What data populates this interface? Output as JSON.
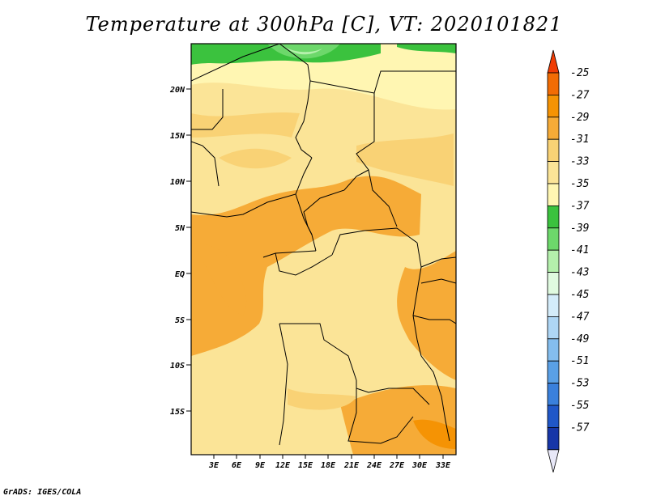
{
  "title": "Temperature at 300hPa [C], VT: 2020101821",
  "credit": "GrADS: IGES/COLA",
  "map": {
    "lon_ticks": [
      "3E",
      "6E",
      "9E",
      "12E",
      "15E",
      "18E",
      "21E",
      "24E",
      "27E",
      "30E",
      "33E"
    ],
    "lat_ticks": [
      "20N",
      "15N",
      "10N",
      "5N",
      "EQ",
      "5S",
      "10S",
      "15S"
    ]
  },
  "colorbar": {
    "levels": [
      {
        "label": "-25",
        "color": "#f26c04"
      },
      {
        "label": "-27",
        "color": "#f59304"
      },
      {
        "label": "-29",
        "color": "#f6ab37"
      },
      {
        "label": "-31",
        "color": "#f9d275"
      },
      {
        "label": "-33",
        "color": "#fbe497"
      },
      {
        "label": "-35",
        "color": "#fff6b2"
      },
      {
        "label": "-37",
        "color": "#3bc23e"
      },
      {
        "label": "-39",
        "color": "#6dd86b"
      },
      {
        "label": "-41",
        "color": "#b4f0ac"
      },
      {
        "label": "-43",
        "color": "#e0fae0"
      },
      {
        "label": "-45",
        "color": "#d4ecfa"
      },
      {
        "label": "-47",
        "color": "#aed6f5"
      },
      {
        "label": "-49",
        "color": "#84bdee"
      },
      {
        "label": "-51",
        "color": "#5aa0e6"
      },
      {
        "label": "-53",
        "color": "#3a80dc"
      },
      {
        "label": "-55",
        "color": "#2057c8"
      },
      {
        "label": "-57",
        "color": "#1736a8"
      }
    ],
    "top_arrow_color": "#f03c04",
    "bottom_arrow_color": "#0b1a78",
    "below_color": "#e8e8f8"
  }
}
